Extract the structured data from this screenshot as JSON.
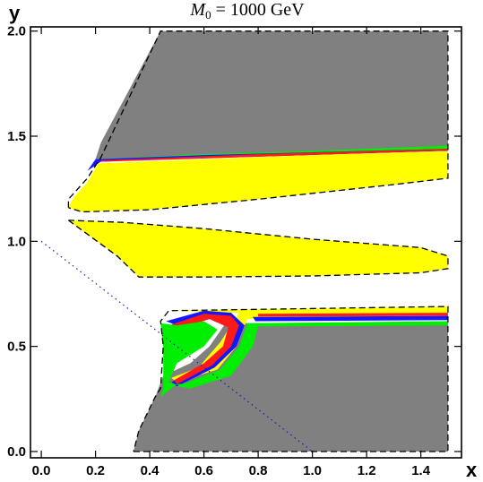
{
  "chart_data": {
    "type": "area",
    "title": "M0 = 1000 GeV",
    "title_parts": {
      "symbol": "M",
      "subscript": "0",
      "rest": " = 1000 GeV"
    },
    "xlabel": "x",
    "ylabel": "y",
    "xlim": [
      -0.04,
      1.55
    ],
    "ylim": [
      -0.03,
      2.02
    ],
    "x_ticks": [
      {
        "value": 0.0,
        "label": "0.0"
      },
      {
        "value": 0.2,
        "label": "0.2"
      },
      {
        "value": 0.4,
        "label": "0.4"
      },
      {
        "value": 0.6,
        "label": "0.6"
      },
      {
        "value": 0.8,
        "label": "0.8"
      },
      {
        "value": 1.0,
        "label": "1.0"
      },
      {
        "value": 1.2,
        "label": "1.2"
      },
      {
        "value": 1.4,
        "label": "1.4"
      }
    ],
    "y_ticks": [
      {
        "value": 0.0,
        "label": "0.0"
      },
      {
        "value": 0.5,
        "label": "0.5"
      },
      {
        "value": 1.0,
        "label": "1.0"
      },
      {
        "value": 1.5,
        "label": "1.5"
      },
      {
        "value": 2.0,
        "label": "2.0"
      }
    ],
    "grid": false,
    "colors": {
      "gray": "#808080",
      "yellow": "#ffff00",
      "green": "#00ee00",
      "blue": "#1515ff",
      "red": "#ff1a1a",
      "dotted_line": "#1a1aa8"
    },
    "regions": [
      {
        "name": "upper-gray",
        "color": "gray",
        "points": [
          [
            0.44,
            2.0
          ],
          [
            1.5,
            2.0
          ],
          [
            1.5,
            1.45
          ],
          [
            0.2,
            1.39
          ],
          [
            0.22,
            1.47
          ]
        ]
      },
      {
        "name": "upper-band-green",
        "color": "green",
        "points": [
          [
            0.2,
            1.39
          ],
          [
            0.6,
            1.415
          ],
          [
            1.0,
            1.43
          ],
          [
            1.5,
            1.455
          ],
          [
            1.5,
            1.435
          ],
          [
            0.22,
            1.38
          ]
        ]
      },
      {
        "name": "upper-band-blue",
        "color": "blue",
        "points": [
          [
            0.17,
            1.335
          ],
          [
            0.2,
            1.39
          ],
          [
            0.6,
            1.41
          ],
          [
            1.5,
            1.44
          ],
          [
            1.5,
            1.43
          ],
          [
            0.22,
            1.38
          ]
        ]
      },
      {
        "name": "upper-band-red",
        "color": "red",
        "points": [
          [
            0.22,
            1.385
          ],
          [
            0.8,
            1.415
          ],
          [
            1.5,
            1.44
          ],
          [
            1.5,
            1.432
          ],
          [
            0.22,
            1.378
          ]
        ]
      },
      {
        "name": "upper-yellow",
        "color": "yellow",
        "points": [
          [
            0.1,
            1.16
          ],
          [
            0.12,
            1.21
          ],
          [
            0.17,
            1.28
          ],
          [
            0.21,
            1.37
          ],
          [
            0.6,
            1.39
          ],
          [
            1.0,
            1.41
          ],
          [
            1.5,
            1.43
          ],
          [
            1.5,
            1.3
          ],
          [
            1.3,
            1.27
          ],
          [
            0.8,
            1.2
          ],
          [
            0.4,
            1.15
          ],
          [
            0.15,
            1.14
          ]
        ]
      },
      {
        "name": "lower-yellow",
        "color": "yellow",
        "points": [
          [
            0.1,
            1.1
          ],
          [
            0.28,
            0.93
          ],
          [
            0.36,
            0.83
          ],
          [
            0.6,
            0.83
          ],
          [
            1.0,
            0.835
          ],
          [
            1.4,
            0.85
          ],
          [
            1.5,
            0.87
          ],
          [
            1.5,
            0.93
          ],
          [
            1.4,
            0.97
          ],
          [
            1.0,
            1.01
          ],
          [
            0.6,
            1.06
          ],
          [
            0.3,
            1.09
          ]
        ]
      },
      {
        "name": "bottom-gray",
        "color": "gray",
        "points": [
          [
            0.34,
            0.0
          ],
          [
            1.5,
            0.0
          ],
          [
            1.5,
            0.61
          ],
          [
            0.68,
            0.61
          ],
          [
            0.62,
            0.5
          ],
          [
            0.55,
            0.42
          ],
          [
            0.45,
            0.36
          ],
          [
            0.42,
            0.26
          ],
          [
            0.36,
            0.1
          ]
        ]
      },
      {
        "name": "bottom-band-yellow",
        "color": "yellow",
        "points": [
          [
            0.47,
            0.67
          ],
          [
            1.5,
            0.69
          ],
          [
            1.5,
            0.65
          ],
          [
            0.76,
            0.63
          ],
          [
            0.72,
            0.5
          ],
          [
            0.65,
            0.39
          ],
          [
            0.5,
            0.33
          ],
          [
            0.48,
            0.35
          ],
          [
            0.58,
            0.4
          ],
          [
            0.66,
            0.52
          ],
          [
            0.73,
            0.66
          ]
        ]
      },
      {
        "name": "bottom-band-blue",
        "color": "blue",
        "points": [
          [
            0.46,
            0.62
          ],
          [
            0.6,
            0.67
          ],
          [
            0.7,
            0.66
          ],
          [
            0.75,
            0.6
          ],
          [
            0.72,
            0.5
          ],
          [
            0.64,
            0.4
          ],
          [
            0.5,
            0.31
          ],
          [
            0.48,
            0.33
          ],
          [
            0.6,
            0.41
          ],
          [
            0.68,
            0.5
          ],
          [
            0.7,
            0.6
          ],
          [
            0.62,
            0.64
          ],
          [
            0.5,
            0.6
          ]
        ]
      },
      {
        "name": "bottom-band-red",
        "color": "red",
        "points": [
          [
            0.47,
            0.6
          ],
          [
            0.6,
            0.655
          ],
          [
            0.7,
            0.645
          ],
          [
            0.73,
            0.6
          ],
          [
            0.7,
            0.5
          ],
          [
            0.63,
            0.41
          ],
          [
            0.5,
            0.32
          ],
          [
            0.49,
            0.34
          ],
          [
            0.6,
            0.42
          ],
          [
            0.67,
            0.5
          ],
          [
            0.69,
            0.59
          ],
          [
            0.62,
            0.63
          ],
          [
            0.5,
            0.58
          ]
        ]
      },
      {
        "name": "bottom-right-band-green",
        "color": "green",
        "points": [
          [
            0.76,
            0.61
          ],
          [
            1.5,
            0.62
          ],
          [
            1.5,
            0.6
          ],
          [
            0.8,
            0.595
          ],
          [
            0.78,
            0.5
          ],
          [
            0.7,
            0.36
          ],
          [
            0.55,
            0.3
          ],
          [
            0.5,
            0.31
          ],
          [
            0.66,
            0.39
          ],
          [
            0.73,
            0.5
          ]
        ]
      },
      {
        "name": "bottom-right-band-blue",
        "color": "blue",
        "points": [
          [
            0.78,
            0.64
          ],
          [
            1.5,
            0.645
          ],
          [
            1.5,
            0.625
          ],
          [
            0.79,
            0.62
          ]
        ]
      },
      {
        "name": "bottom-right-band-red",
        "color": "red",
        "points": [
          [
            0.8,
            0.655
          ],
          [
            1.5,
            0.66
          ],
          [
            1.5,
            0.645
          ],
          [
            0.8,
            0.642
          ]
        ]
      },
      {
        "name": "bottom-green",
        "color": "green",
        "points": [
          [
            0.44,
            0.61
          ],
          [
            0.5,
            0.6
          ],
          [
            0.6,
            0.62
          ],
          [
            0.65,
            0.58
          ],
          [
            0.6,
            0.5
          ],
          [
            0.5,
            0.42
          ],
          [
            0.47,
            0.33
          ],
          [
            0.52,
            0.31
          ],
          [
            0.6,
            0.33
          ],
          [
            0.5,
            0.32
          ],
          [
            0.44,
            0.26
          ],
          [
            0.45,
            0.3
          ],
          [
            0.45,
            0.5
          ]
        ]
      }
    ],
    "boundary_dashed": [
      [
        [
          0.1,
          1.16
        ],
        [
          0.1,
          1.2
        ],
        [
          0.17,
          1.3
        ],
        [
          0.22,
          1.4
        ],
        [
          0.44,
          2.0
        ],
        [
          1.5,
          2.0
        ],
        [
          1.5,
          1.3
        ],
        [
          1.3,
          1.27
        ],
        [
          0.8,
          1.2
        ],
        [
          0.4,
          1.15
        ],
        [
          0.15,
          1.14
        ],
        [
          0.1,
          1.16
        ]
      ],
      [
        [
          0.1,
          1.1
        ],
        [
          0.28,
          0.93
        ],
        [
          0.36,
          0.83
        ],
        [
          0.6,
          0.83
        ],
        [
          1.0,
          0.835
        ],
        [
          1.4,
          0.85
        ],
        [
          1.5,
          0.87
        ],
        [
          1.5,
          0.93
        ],
        [
          1.4,
          0.97
        ],
        [
          1.0,
          1.01
        ],
        [
          0.6,
          1.06
        ],
        [
          0.3,
          1.09
        ],
        [
          0.1,
          1.1
        ]
      ],
      [
        [
          0.34,
          0.0
        ],
        [
          1.5,
          0.0
        ],
        [
          1.5,
          0.69
        ],
        [
          0.47,
          0.67
        ],
        [
          0.44,
          0.62
        ],
        [
          0.45,
          0.5
        ],
        [
          0.44,
          0.3
        ],
        [
          0.42,
          0.26
        ],
        [
          0.36,
          0.1
        ],
        [
          0.34,
          0.0
        ]
      ]
    ],
    "dotted_line": {
      "points": [
        [
          0.0,
          1.0
        ],
        [
          1.0,
          0.0
        ]
      ],
      "color": "dotted_line"
    }
  }
}
